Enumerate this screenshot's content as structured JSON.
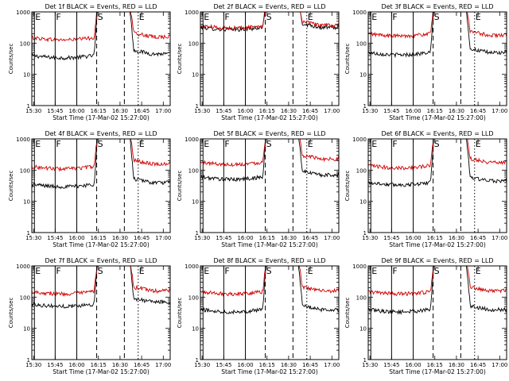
{
  "figure": {
    "event_color": "#000000",
    "lld_color": "#d00000",
    "axis_color": "#000000"
  },
  "chart_data": [
    {
      "type": "line",
      "title": "Det 1f BLACK = Events, RED = LLD",
      "xlabel": "Start Time (17-Mar-02 15:27:00)",
      "ylabel": "Counts/sec",
      "yscale": "log",
      "ylim": [
        1,
        1000
      ],
      "yticks": [
        "1",
        "10",
        "100",
        "1000"
      ],
      "xlim": [
        15.5,
        17.1
      ],
      "xtick_labels": [
        "15:30",
        "15:45",
        "16:00",
        "16:15",
        "16:30",
        "16:45",
        "17:00"
      ],
      "markers": [
        {
          "label": "E",
          "x": 15.53,
          "style": "solid"
        },
        {
          "label": "F",
          "x": 15.77,
          "style": "solid"
        },
        {
          "label": "",
          "x": 16.02,
          "style": "solid"
        },
        {
          "label": "S",
          "x": 16.25,
          "style": "dashed"
        },
        {
          "label": "",
          "x": 16.57,
          "style": "dashed"
        },
        {
          "label": "E",
          "x": 16.73,
          "style": "dotted"
        }
      ],
      "series": [
        {
          "name": "Events",
          "color": "#000000",
          "levels": {
            "pre": 40,
            "flare": 1000,
            "post": 45
          }
        },
        {
          "name": "LLD",
          "color": "#d00000",
          "levels": {
            "pre": 150,
            "flare": 1000,
            "post": 160
          }
        }
      ]
    },
    {
      "type": "line",
      "title": "Det 2f BLACK = Events, RED = LLD",
      "xlabel": "Start Time (17-Mar-02 15:27:00)",
      "ylabel": "Counts/sec",
      "yscale": "log",
      "ylim": [
        1,
        1000
      ],
      "yticks": [
        "1",
        "10",
        "100",
        "1000"
      ],
      "xlim": [
        15.5,
        17.1
      ],
      "xtick_labels": [
        "15:30",
        "15:45",
        "16:00",
        "16:15",
        "16:30",
        "16:45",
        "17:00"
      ],
      "markers": [
        {
          "label": "E",
          "x": 15.53,
          "style": "solid"
        },
        {
          "label": "F",
          "x": 15.77,
          "style": "solid"
        },
        {
          "label": "",
          "x": 16.02,
          "style": "solid"
        },
        {
          "label": "S",
          "x": 16.25,
          "style": "dashed"
        },
        {
          "label": "",
          "x": 16.57,
          "style": "dashed"
        },
        {
          "label": "E",
          "x": 16.73,
          "style": "dotted"
        }
      ],
      "series": [
        {
          "name": "Events",
          "color": "#000000",
          "levels": {
            "pre": 320,
            "flare": 1000,
            "post": 320
          }
        },
        {
          "name": "LLD",
          "color": "#d00000",
          "levels": {
            "pre": 360,
            "flare": 1000,
            "post": 370
          }
        }
      ]
    },
    {
      "type": "line",
      "title": "Det 3f BLACK = Events, RED = LLD",
      "xlabel": "Start Time (17-Mar-02 15:27:00)",
      "ylabel": "Counts/sec",
      "yscale": "log",
      "ylim": [
        1,
        1000
      ],
      "yticks": [
        "1",
        "10",
        "100",
        "1000"
      ],
      "xlim": [
        15.5,
        17.1
      ],
      "xtick_labels": [
        "15:30",
        "15:45",
        "16:00",
        "16:15",
        "16:30",
        "16:45",
        "17:00"
      ],
      "markers": [
        {
          "label": "E",
          "x": 15.53,
          "style": "solid"
        },
        {
          "label": "F",
          "x": 15.77,
          "style": "solid"
        },
        {
          "label": "",
          "x": 16.02,
          "style": "solid"
        },
        {
          "label": "S",
          "x": 16.25,
          "style": "dashed"
        },
        {
          "label": "",
          "x": 16.57,
          "style": "dashed"
        },
        {
          "label": "E",
          "x": 16.73,
          "style": "dotted"
        }
      ],
      "series": [
        {
          "name": "Events",
          "color": "#000000",
          "levels": {
            "pre": 50,
            "flare": 1000,
            "post": 50
          }
        },
        {
          "name": "LLD",
          "color": "#d00000",
          "levels": {
            "pre": 200,
            "flare": 1000,
            "post": 180
          }
        }
      ]
    },
    {
      "type": "line",
      "title": "Det 4f BLACK = Events, RED = LLD",
      "xlabel": "Start Time (17-Mar-02 15:27:00)",
      "ylabel": "Counts/sec",
      "yscale": "log",
      "ylim": [
        1,
        1000
      ],
      "yticks": [
        "1",
        "10",
        "100",
        "1000"
      ],
      "xlim": [
        15.5,
        17.1
      ],
      "xtick_labels": [
        "15:30",
        "15:45",
        "16:00",
        "16:15",
        "16:30",
        "16:45",
        "17:00"
      ],
      "markers": [
        {
          "label": "E",
          "x": 15.53,
          "style": "solid"
        },
        {
          "label": "F",
          "x": 15.77,
          "style": "solid"
        },
        {
          "label": "",
          "x": 16.02,
          "style": "solid"
        },
        {
          "label": "S",
          "x": 16.25,
          "style": "dashed"
        },
        {
          "label": "",
          "x": 16.57,
          "style": "dashed"
        },
        {
          "label": "E",
          "x": 16.73,
          "style": "dotted"
        }
      ],
      "series": [
        {
          "name": "Events",
          "color": "#000000",
          "levels": {
            "pre": 35,
            "flare": 1000,
            "post": 40
          }
        },
        {
          "name": "LLD",
          "color": "#d00000",
          "levels": {
            "pre": 130,
            "flare": 1000,
            "post": 160
          }
        }
      ]
    },
    {
      "type": "line",
      "title": "Det 5f BLACK = Events, RED = LLD",
      "xlabel": "Start Time (17-Mar-02 15:27:00)",
      "ylabel": "Counts/sec",
      "yscale": "log",
      "ylim": [
        1,
        1000
      ],
      "yticks": [
        "1",
        "10",
        "100",
        "1000"
      ],
      "xlim": [
        15.5,
        17.1
      ],
      "xtick_labels": [
        "15:30",
        "15:45",
        "16:00",
        "16:15",
        "16:30",
        "16:45",
        "17:00"
      ],
      "markers": [
        {
          "label": "E",
          "x": 15.53,
          "style": "solid"
        },
        {
          "label": "F",
          "x": 15.77,
          "style": "solid"
        },
        {
          "label": "",
          "x": 16.02,
          "style": "solid"
        },
        {
          "label": "S",
          "x": 16.25,
          "style": "dashed"
        },
        {
          "label": "",
          "x": 16.57,
          "style": "dashed"
        },
        {
          "label": "E",
          "x": 16.73,
          "style": "dotted"
        }
      ],
      "series": [
        {
          "name": "Events",
          "color": "#000000",
          "levels": {
            "pre": 60,
            "flare": 1000,
            "post": 70
          }
        },
        {
          "name": "LLD",
          "color": "#d00000",
          "levels": {
            "pre": 180,
            "flare": 1000,
            "post": 230
          }
        }
      ]
    },
    {
      "type": "line",
      "title": "Det 6f BLACK = Events, RED = LLD",
      "xlabel": "Start Time (17-Mar-02 15:27:00)",
      "ylabel": "Counts/sec",
      "yscale": "log",
      "ylim": [
        1,
        1000
      ],
      "yticks": [
        "1",
        "10",
        "100",
        "1000"
      ],
      "xlim": [
        15.5,
        17.1
      ],
      "xtick_labels": [
        "15:30",
        "15:45",
        "16:00",
        "16:15",
        "16:30",
        "16:45",
        "17:00"
      ],
      "markers": [
        {
          "label": "E",
          "x": 15.53,
          "style": "solid"
        },
        {
          "label": "F",
          "x": 15.77,
          "style": "solid"
        },
        {
          "label": "",
          "x": 16.02,
          "style": "solid"
        },
        {
          "label": "S",
          "x": 16.25,
          "style": "dashed"
        },
        {
          "label": "",
          "x": 16.57,
          "style": "dashed"
        },
        {
          "label": "E",
          "x": 16.73,
          "style": "dotted"
        }
      ],
      "series": [
        {
          "name": "Events",
          "color": "#000000",
          "levels": {
            "pre": 40,
            "flare": 1000,
            "post": 45
          }
        },
        {
          "name": "LLD",
          "color": "#d00000",
          "levels": {
            "pre": 140,
            "flare": 1000,
            "post": 180
          }
        }
      ]
    },
    {
      "type": "line",
      "title": "Det 7f BLACK = Events, RED = LLD",
      "xlabel": "Start Time (17-Mar-02 15:27:00)",
      "ylabel": "Counts/sec",
      "yscale": "log",
      "ylim": [
        1,
        1000
      ],
      "yticks": [
        "1",
        "10",
        "100",
        "1000"
      ],
      "xlim": [
        15.5,
        17.1
      ],
      "xtick_labels": [
        "15:30",
        "15:45",
        "16:00",
        "16:15",
        "16:30",
        "16:45",
        "17:00"
      ],
      "markers": [
        {
          "label": "E",
          "x": 15.53,
          "style": "solid"
        },
        {
          "label": "F",
          "x": 15.77,
          "style": "solid"
        },
        {
          "label": "",
          "x": 16.02,
          "style": "solid"
        },
        {
          "label": "S",
          "x": 16.25,
          "style": "dashed"
        },
        {
          "label": "",
          "x": 16.57,
          "style": "dashed"
        },
        {
          "label": "E",
          "x": 16.73,
          "style": "dotted"
        }
      ],
      "series": [
        {
          "name": "Events",
          "color": "#000000",
          "levels": {
            "pre": 60,
            "flare": 1000,
            "post": 70
          }
        },
        {
          "name": "LLD",
          "color": "#d00000",
          "levels": {
            "pre": 150,
            "flare": 1000,
            "post": 160
          }
        }
      ]
    },
    {
      "type": "line",
      "title": "Det 8f BLACK = Events, RED = LLD",
      "xlabel": "Start Time (17-Mar-02 15:27:00)",
      "ylabel": "Counts/sec",
      "yscale": "log",
      "ylim": [
        1,
        1000
      ],
      "yticks": [
        "1",
        "10",
        "100",
        "1000"
      ],
      "xlim": [
        15.5,
        17.1
      ],
      "xtick_labels": [
        "15:30",
        "15:45",
        "16:00",
        "16:15",
        "16:30",
        "16:45",
        "17:00"
      ],
      "markers": [
        {
          "label": "E",
          "x": 15.53,
          "style": "solid"
        },
        {
          "label": "F",
          "x": 15.77,
          "style": "solid"
        },
        {
          "label": "",
          "x": 16.02,
          "style": "solid"
        },
        {
          "label": "S",
          "x": 16.25,
          "style": "dashed"
        },
        {
          "label": "",
          "x": 16.57,
          "style": "dashed"
        },
        {
          "label": "E",
          "x": 16.73,
          "style": "dotted"
        }
      ],
      "series": [
        {
          "name": "Events",
          "color": "#000000",
          "levels": {
            "pre": 40,
            "flare": 1000,
            "post": 40
          }
        },
        {
          "name": "LLD",
          "color": "#d00000",
          "levels": {
            "pre": 150,
            "flare": 1000,
            "post": 160
          }
        }
      ]
    },
    {
      "type": "line",
      "title": "Det 9f BLACK = Events, RED = LLD",
      "xlabel": "Start Time (17-Mar-02 15:27:00)",
      "ylabel": "Counts/sec",
      "yscale": "log",
      "ylim": [
        1,
        1000
      ],
      "yticks": [
        "1",
        "10",
        "100",
        "1000"
      ],
      "xlim": [
        15.5,
        17.1
      ],
      "xtick_labels": [
        "15:30",
        "15:45",
        "16:00",
        "16:15",
        "16:30",
        "16:45",
        "17:00"
      ],
      "markers": [
        {
          "label": "E",
          "x": 15.53,
          "style": "solid"
        },
        {
          "label": "F",
          "x": 15.77,
          "style": "solid"
        },
        {
          "label": "",
          "x": 16.02,
          "style": "solid"
        },
        {
          "label": "S",
          "x": 16.25,
          "style": "dashed"
        },
        {
          "label": "",
          "x": 16.57,
          "style": "dashed"
        },
        {
          "label": "E",
          "x": 16.73,
          "style": "dotted"
        }
      ],
      "series": [
        {
          "name": "Events",
          "color": "#000000",
          "levels": {
            "pre": 40,
            "flare": 1000,
            "post": 40
          }
        },
        {
          "name": "LLD",
          "color": "#d00000",
          "levels": {
            "pre": 150,
            "flare": 1000,
            "post": 160
          }
        }
      ]
    }
  ]
}
